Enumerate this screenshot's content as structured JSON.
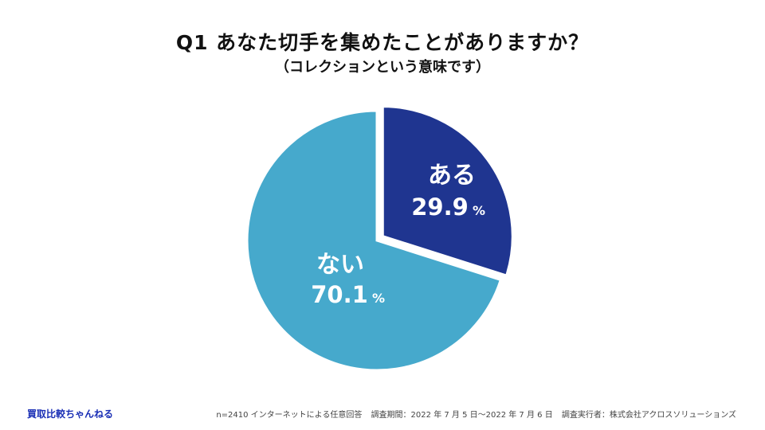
{
  "title": "Q1 あなた切手を集めたことがありますか？",
  "subtitle": "（コレクションという意味です）",
  "chart_data": {
    "type": "pie",
    "unit": "%",
    "slices": [
      {
        "label": "ある",
        "value": 29.9,
        "value_text": "29.9",
        "color": "#1f3590"
      },
      {
        "label": "ない",
        "value": 70.1,
        "value_text": "70.1",
        "color": "#46a9cc"
      }
    ]
  },
  "footer": {
    "brand": "買取比較ちゃんねる",
    "sample": "n=2410 インターネットによる任意回答",
    "period": "調査期間：2022 年 7 月 5 日〜2022 年 7 月 6 日",
    "surveyor": "調査実行者：株式会社アクロスソリューションズ"
  }
}
